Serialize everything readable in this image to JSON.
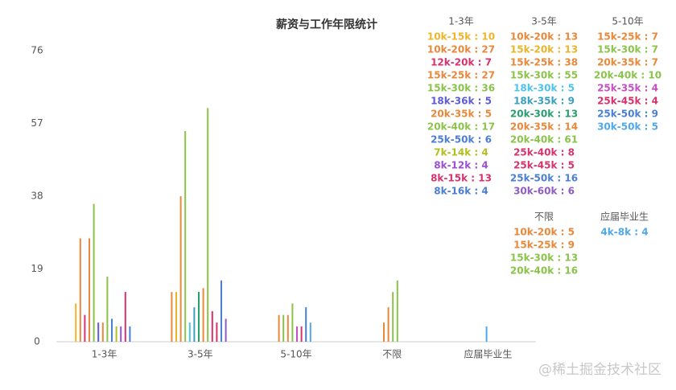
{
  "chart_data": {
    "type": "bar",
    "title": "薪资与工作年限统计",
    "categories": [
      "1-3年",
      "3-5年",
      "5-10年",
      "不限",
      "应届毕业生"
    ],
    "ylim": [
      0,
      76
    ],
    "yticks": [
      0,
      19,
      38,
      57,
      76
    ],
    "grid": false,
    "groups": [
      {
        "name": "1-3年",
        "items": [
          {
            "label": "10k-15k : 10",
            "value": 10,
            "color": "#f0b429"
          },
          {
            "label": "10k-20k : 27",
            "value": 27,
            "color": "#e8883a"
          },
          {
            "label": "12k-20k : 7",
            "value": 7,
            "color": "#d6336c"
          },
          {
            "label": "15k-25k : 27",
            "value": 27,
            "color": "#e8883a"
          },
          {
            "label": "15k-30k : 36",
            "value": 36,
            "color": "#8bc34a"
          },
          {
            "label": "18k-36k : 5",
            "value": 5,
            "color": "#5c5cd6"
          },
          {
            "label": "20k-35k : 5",
            "value": 5,
            "color": "#e8883a"
          },
          {
            "label": "20k-40k : 17",
            "value": 17,
            "color": "#8bc34a"
          },
          {
            "label": "25k-50k : 6",
            "value": 6,
            "color": "#4a7fd4"
          },
          {
            "label": "7k-14k : 4",
            "value": 4,
            "color": "#b0c020"
          },
          {
            "label": "8k-12k : 4",
            "value": 4,
            "color": "#9c4fd6"
          },
          {
            "label": "8k-15k : 13",
            "value": 13,
            "color": "#d6336c"
          },
          {
            "label": "8k-16k : 4",
            "value": 4,
            "color": "#4a7fd4"
          }
        ]
      },
      {
        "name": "3-5年",
        "items": [
          {
            "label": "10k-20k : 13",
            "value": 13,
            "color": "#e8883a"
          },
          {
            "label": "15k-20k : 13",
            "value": 13,
            "color": "#e8b429"
          },
          {
            "label": "15k-25k : 38",
            "value": 38,
            "color": "#e8883a"
          },
          {
            "label": "15k-30k : 55",
            "value": 55,
            "color": "#8bc34a"
          },
          {
            "label": "18k-30k : 5",
            "value": 5,
            "color": "#4fc3e8"
          },
          {
            "label": "18k-35k : 9",
            "value": 9,
            "color": "#3aa0c0"
          },
          {
            "label": "20k-30k : 13",
            "value": 13,
            "color": "#2a9d6f"
          },
          {
            "label": "20k-35k : 14",
            "value": 14,
            "color": "#e8883a"
          },
          {
            "label": "20k-40k : 61",
            "value": 61,
            "color": "#8bc34a"
          },
          {
            "label": "25k-40k : 8",
            "value": 8,
            "color": "#d6336c"
          },
          {
            "label": "25k-45k : 5",
            "value": 5,
            "color": "#d6336c"
          },
          {
            "label": "25k-50k : 16",
            "value": 16,
            "color": "#4a7fd4"
          },
          {
            "label": "30k-60k : 6",
            "value": 6,
            "color": "#8e5cc4"
          }
        ]
      },
      {
        "name": "5-10年",
        "items": [
          {
            "label": "15k-25k : 7",
            "value": 7,
            "color": "#e8883a"
          },
          {
            "label": "15k-30k : 7",
            "value": 7,
            "color": "#8bc34a"
          },
          {
            "label": "20k-35k : 7",
            "value": 7,
            "color": "#e8883a"
          },
          {
            "label": "20k-40k : 10",
            "value": 10,
            "color": "#8bc34a"
          },
          {
            "label": "25k-35k : 4",
            "value": 4,
            "color": "#c64fc6"
          },
          {
            "label": "25k-45k : 4",
            "value": 4,
            "color": "#d6336c"
          },
          {
            "label": "25k-50k : 9",
            "value": 9,
            "color": "#4a7fd4"
          },
          {
            "label": "30k-50k : 5",
            "value": 5,
            "color": "#4fa8e8"
          }
        ]
      },
      {
        "name": "不限",
        "items": [
          {
            "label": "10k-20k : 5",
            "value": 5,
            "color": "#e8883a"
          },
          {
            "label": "15k-25k : 9",
            "value": 9,
            "color": "#e8883a"
          },
          {
            "label": "15k-30k : 13",
            "value": 13,
            "color": "#8bc34a"
          },
          {
            "label": "20k-40k : 16",
            "value": 16,
            "color": "#8bc34a"
          }
        ]
      },
      {
        "name": "应届毕业生",
        "items": [
          {
            "label": "4k-8k : 4",
            "value": 4,
            "color": "#4fa8e8"
          }
        ]
      }
    ],
    "watermark": "@稀土掘金技术社区"
  }
}
